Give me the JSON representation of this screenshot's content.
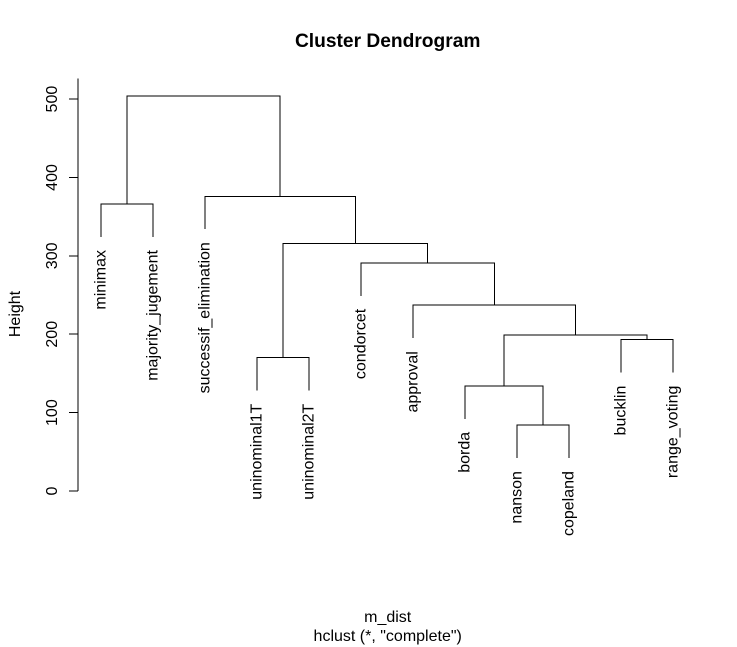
{
  "chart_data": {
    "type": "dendrogram",
    "title": "Cluster Dendrogram",
    "ylabel": "Height",
    "xlabel": "m_dist",
    "sub": "hclust (*, \"complete\")",
    "ylim": [
      0,
      526
    ],
    "yticks": [
      0,
      100,
      200,
      300,
      400,
      500
    ],
    "tree": {
      "height": 504,
      "children": [
        {
          "height": 366,
          "children": [
            {
              "label": "minimax"
            },
            {
              "label": "majority_jugement"
            }
          ]
        },
        {
          "height": 376,
          "children": [
            {
              "label": "successif_elimination"
            },
            {
              "height": 316,
              "children": [
                {
                  "height": 170,
                  "children": [
                    {
                      "label": "uninominal1T"
                    },
                    {
                      "label": "uninominal2T"
                    }
                  ]
                },
                {
                  "height": 291,
                  "children": [
                    {
                      "label": "condorcet"
                    },
                    {
                      "height": 237,
                      "children": [
                        {
                          "label": "approval"
                        },
                        {
                          "height": 199,
                          "children": [
                            {
                              "height": 134,
                              "children": [
                                {
                                  "label": "borda"
                                },
                                {
                                  "height": 84,
                                  "children": [
                                    {
                                      "label": "nanson"
                                    },
                                    {
                                      "label": "copeland"
                                    }
                                  ]
                                }
                              ]
                            },
                            {
                              "height": 193,
                              "children": [
                                {
                                  "label": "bucklin"
                                },
                                {
                                  "label": "range_voting"
                                }
                              ]
                            }
                          ]
                        }
                      ]
                    }
                  ]
                }
              ]
            }
          ]
        }
      ]
    }
  }
}
